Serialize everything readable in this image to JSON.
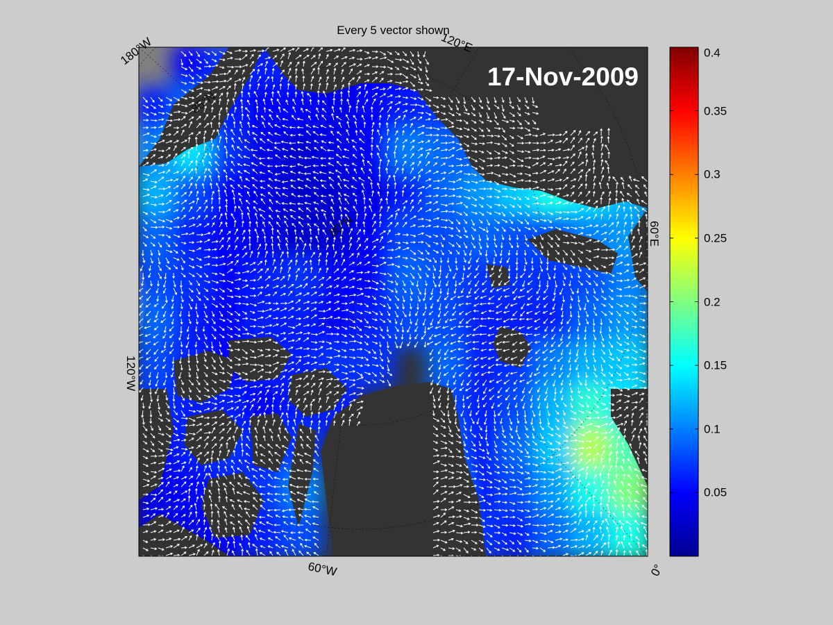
{
  "map": {
    "title": "Every 5 vector shown",
    "date_stamp": "17-Nov-2009",
    "grid_labels": {
      "lon_180w": "180°W",
      "lon_120e": "120°E",
      "lat_85n": "85°N",
      "lat_80n": "80°N",
      "lon_60e": "60°E",
      "lon_120w": "120°W",
      "lon_60w": "60°W",
      "lon_0": "0°"
    },
    "colors": {
      "page_background": "#cccccc",
      "land_inside_domain": "#333333",
      "land_outside_domain": "#808080",
      "vectors": "#ffffff",
      "graticule": "#000000"
    },
    "vector_field": {
      "note_shown": "Every 5 vector shown",
      "value_grid_14x12": [
        [
          0.0,
          0.05,
          0.07,
          0.06,
          0.06,
          0.05,
          0.05,
          0.05,
          0.0,
          0.0,
          0.0,
          0.0,
          0.0,
          0.0
        ],
        [
          0.06,
          0.09,
          0.06,
          0.05,
          0.05,
          0.04,
          0.05,
          0.06,
          0.07,
          0.06,
          0.05,
          0.0,
          0.0,
          0.0
        ],
        [
          0.1,
          0.14,
          0.07,
          0.04,
          0.03,
          0.04,
          0.05,
          0.1,
          0.09,
          0.08,
          0.1,
          0.13,
          0.12,
          0.0
        ],
        [
          0.12,
          0.08,
          0.05,
          0.04,
          0.03,
          0.03,
          0.04,
          0.06,
          0.09,
          0.11,
          0.13,
          0.16,
          0.14,
          0.12
        ],
        [
          0.09,
          0.06,
          0.05,
          0.04,
          0.03,
          0.03,
          0.05,
          0.08,
          0.08,
          0.09,
          0.08,
          0.08,
          0.1,
          0.11
        ],
        [
          0.08,
          0.07,
          0.05,
          0.06,
          0.07,
          0.05,
          0.05,
          0.09,
          0.08,
          0.07,
          0.07,
          0.07,
          0.08,
          0.1
        ],
        [
          0.09,
          0.06,
          0.05,
          0.06,
          0.06,
          0.05,
          0.06,
          0.08,
          0.08,
          0.06,
          0.06,
          0.06,
          0.09,
          0.11
        ],
        [
          0.08,
          0.06,
          0.05,
          0.06,
          0.06,
          0.07,
          0.07,
          0.0,
          0.09,
          0.06,
          0.07,
          0.1,
          0.12,
          0.13
        ],
        [
          0.07,
          0.06,
          0.06,
          0.05,
          0.06,
          0.06,
          0.0,
          0.0,
          0.08,
          0.06,
          0.08,
          0.12,
          0.17,
          0.14
        ],
        [
          0.05,
          0.06,
          0.07,
          0.06,
          0.07,
          0.0,
          0.0,
          0.0,
          0.09,
          0.06,
          0.09,
          0.13,
          0.22,
          0.18
        ],
        [
          0.04,
          0.05,
          0.06,
          0.07,
          0.1,
          0.0,
          0.0,
          0.0,
          0.12,
          0.06,
          0.08,
          0.11,
          0.16,
          0.2
        ],
        [
          0.04,
          0.04,
          0.05,
          0.06,
          0.08,
          0.0,
          0.0,
          0.0,
          0.14,
          0.07,
          0.06,
          0.09,
          0.12,
          0.16
        ]
      ]
    }
  },
  "colorbar": {
    "min": 0,
    "max": 0.4,
    "ticks": [
      "0.4",
      "0.35",
      "0.3",
      "0.25",
      "0.2",
      "0.15",
      "0.1",
      "0.05"
    ],
    "tick_values": [
      0.4,
      0.35,
      0.3,
      0.25,
      0.2,
      0.15,
      0.1,
      0.05
    ],
    "colormap": "jet"
  }
}
